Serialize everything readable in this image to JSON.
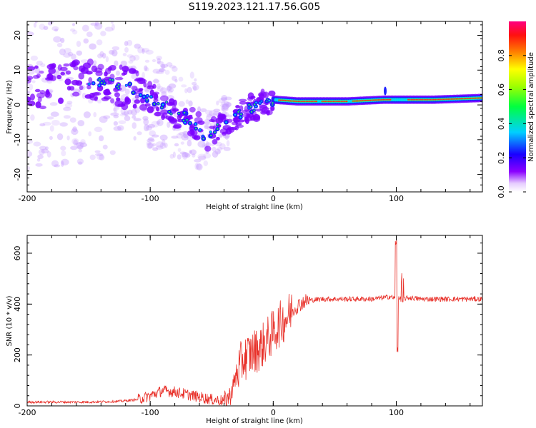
{
  "title": "S119.2023.121.17.56.G05",
  "colors": {
    "snr_line": "#e8312a",
    "spec_purple": "#7a00ff",
    "spec_blue": "#1e22ff",
    "spec_cyan": "#00d8e8",
    "spec_green": "#39e65a",
    "spec_red": "#ff2a1a",
    "axis": "#000000"
  },
  "chart_data": [
    {
      "type": "heatmap",
      "xlabel": "Height of straight line (km)",
      "ylabel": "Frequency (Hz)",
      "xlim": [
        -200,
        170
      ],
      "ylim": [
        -25,
        24
      ],
      "xticks": [
        {
          "value": -200,
          "label": "-200"
        },
        {
          "value": -100,
          "label": "-100"
        },
        {
          "value": 0,
          "label": "0"
        },
        {
          "value": 100,
          "label": "100"
        }
      ],
      "yticks": [
        {
          "value": 20,
          "label": "20"
        },
        {
          "value": 10,
          "label": "10"
        },
        {
          "value": 0,
          "label": "0"
        },
        {
          "value": -10,
          "label": "-10"
        },
        {
          "value": -20,
          "label": "-20"
        }
      ],
      "ridge": [
        {
          "x": -190,
          "y": 5
        },
        {
          "x": -170,
          "y": 6
        },
        {
          "x": -140,
          "y": 7
        },
        {
          "x": -120,
          "y": 5
        },
        {
          "x": -105,
          "y": 3
        },
        {
          "x": -90,
          "y": 0
        },
        {
          "x": -75,
          "y": -3
        },
        {
          "x": -62,
          "y": -6
        },
        {
          "x": -55,
          "y": -9
        },
        {
          "x": -45,
          "y": -7
        },
        {
          "x": -35,
          "y": -4
        },
        {
          "x": -20,
          "y": -1
        },
        {
          "x": -5,
          "y": 1
        },
        {
          "x": 0,
          "y": 1.5
        },
        {
          "x": 20,
          "y": 1
        },
        {
          "x": 60,
          "y": 1
        },
        {
          "x": 90,
          "y": 1.5
        },
        {
          "x": 100,
          "y": 1.5
        },
        {
          "x": 130,
          "y": 1.5
        },
        {
          "x": 170,
          "y": 2
        }
      ],
      "colorbar": {
        "label": "Normalized spectral amplitude",
        "range": [
          0,
          1
        ],
        "ticks": [
          {
            "value": 0.0,
            "label": "0.0"
          },
          {
            "value": 0.2,
            "label": "0.2"
          },
          {
            "value": 0.4,
            "label": "0.4"
          },
          {
            "value": 0.6,
            "label": "0.6"
          },
          {
            "value": 0.8,
            "label": "0.8"
          }
        ]
      }
    },
    {
      "type": "line",
      "xlabel": "Height of straight line (km)",
      "ylabel": "SNR (10 * v/v)",
      "xlim": [
        -200,
        170
      ],
      "ylim": [
        0,
        670
      ],
      "xticks": [
        {
          "value": -200,
          "label": "-200"
        },
        {
          "value": -100,
          "label": "-100"
        },
        {
          "value": 0,
          "label": "0"
        },
        {
          "value": 100,
          "label": "100"
        }
      ],
      "yticks": [
        {
          "value": 0,
          "label": "0"
        },
        {
          "value": 200,
          "label": "200"
        },
        {
          "value": 400,
          "label": "400"
        },
        {
          "value": 600,
          "label": "600"
        }
      ],
      "series": [
        {
          "x": [
            -200,
            -175,
            -150,
            -125,
            -110,
            -100,
            -90,
            -80,
            -70,
            -60,
            -50,
            -40,
            -35,
            -30,
            -25,
            -20,
            -15,
            -10,
            -5,
            0,
            5,
            10,
            15,
            20,
            25,
            30,
            40,
            50,
            60,
            70,
            80,
            90,
            95,
            100,
            105,
            110,
            120,
            130,
            140,
            150,
            160,
            170
          ],
          "values": [
            15,
            15,
            15,
            18,
            25,
            40,
            60,
            55,
            45,
            35,
            25,
            20,
            40,
            120,
            180,
            200,
            215,
            230,
            260,
            290,
            320,
            345,
            370,
            395,
            410,
            415,
            420,
            420,
            420,
            420,
            420,
            425,
            430,
            420,
            420,
            425,
            420,
            420,
            420,
            420,
            420,
            420
          ]
        }
      ]
    }
  ]
}
